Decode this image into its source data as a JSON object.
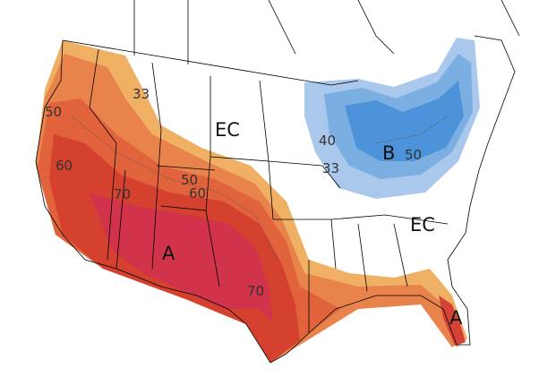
{
  "labels": [
    "33",
    "50",
    "60",
    "70",
    "50",
    "60",
    "A",
    "70",
    "A",
    "EC",
    "EC",
    "40",
    "33",
    "B",
    "50"
  ]
}
